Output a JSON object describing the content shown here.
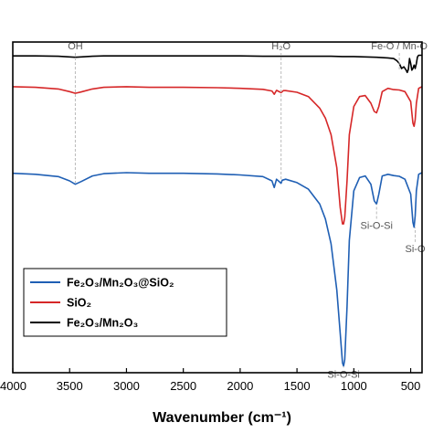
{
  "chart_data": {
    "type": "line",
    "xlabel": "Wavenumber (cm⁻¹)",
    "ylabel": "",
    "title": "",
    "xlim": [
      4000,
      400
    ],
    "ylim": [
      0,
      100
    ],
    "x_reversed": true,
    "x_ticks": [
      4000,
      3500,
      3000,
      2500,
      2000,
      1500,
      1000,
      500
    ],
    "x_tick_labels": [
      "4000",
      "3500",
      "3000",
      "2500",
      "2000",
      "1500",
      "1000",
      "500"
    ],
    "y_ticks_shown": false,
    "grid": false,
    "legend_position": "bottom-left",
    "series": [
      {
        "name": "Fe₂O₃/Mn₂O₃@SiO₂",
        "color": "#1f5fb4",
        "x": [
          4000,
          3800,
          3600,
          3500,
          3450,
          3400,
          3300,
          3200,
          3000,
          2800,
          2500,
          2200,
          2000,
          1800,
          1720,
          1700,
          1680,
          1640,
          1630,
          1600,
          1500,
          1400,
          1300,
          1250,
          1200,
          1150,
          1120,
          1100,
          1090,
          1080,
          1060,
          1040,
          1000,
          950,
          900,
          850,
          820,
          800,
          780,
          750,
          700,
          650,
          600,
          550,
          500,
          480,
          470,
          460,
          450,
          430,
          400
        ],
        "y": [
          60.3,
          60.0,
          59.3,
          58.0,
          57.0,
          57.8,
          59.5,
          60.2,
          60.5,
          60.3,
          60.3,
          60.1,
          59.8,
          59.3,
          58.0,
          56.0,
          58.5,
          57.3,
          58.2,
          58.5,
          57.5,
          55.5,
          51.0,
          46.5,
          39.0,
          25.0,
          12.0,
          3.0,
          2.0,
          4.0,
          20.0,
          40.0,
          55.0,
          59.0,
          59.5,
          57.0,
          52.0,
          51.0,
          54.0,
          59.5,
          60.0,
          59.6,
          59.4,
          58.5,
          54.0,
          45.5,
          44.0,
          47.5,
          55.0,
          60.0,
          60.5
        ]
      },
      {
        "name": "SiO₂",
        "color": "#d62728",
        "x": [
          4000,
          3800,
          3600,
          3500,
          3450,
          3400,
          3300,
          3200,
          3000,
          2800,
          2500,
          2200,
          2000,
          1800,
          1720,
          1700,
          1680,
          1640,
          1620,
          1600,
          1500,
          1400,
          1300,
          1250,
          1200,
          1150,
          1120,
          1100,
          1090,
          1080,
          1060,
          1040,
          1000,
          950,
          900,
          850,
          820,
          800,
          780,
          750,
          700,
          650,
          600,
          550,
          500,
          480,
          470,
          460,
          450,
          430,
          400
        ],
        "y": [
          86.5,
          86.3,
          85.8,
          85.0,
          84.5,
          84.9,
          85.8,
          86.3,
          86.5,
          86.3,
          86.3,
          86.2,
          86.0,
          85.7,
          85.2,
          84.2,
          85.4,
          84.7,
          85.3,
          85.3,
          84.8,
          83.5,
          80.0,
          77.0,
          72.0,
          62.0,
          50.0,
          45.0,
          45.0,
          47.0,
          58.0,
          72.0,
          80.5,
          83.5,
          83.8,
          81.5,
          79.0,
          78.6,
          80.5,
          85.0,
          86.0,
          85.6,
          85.5,
          85.0,
          82.0,
          75.5,
          74.5,
          76.5,
          81.5,
          86.0,
          86.5
        ]
      },
      {
        "name": "Fe₂O₃/Mn₂O₃",
        "color": "#000000",
        "x": [
          4000,
          3800,
          3600,
          3500,
          3450,
          3400,
          3300,
          3200,
          3000,
          2800,
          2500,
          2200,
          2000,
          1800,
          1600,
          1400,
          1200,
          1100,
          1000,
          900,
          800,
          700,
          650,
          620,
          600,
          580,
          560,
          540,
          530,
          520,
          510,
          500,
          490,
          480,
          470,
          460,
          450,
          440,
          430,
          420,
          400
        ],
        "y": [
          95.8,
          95.8,
          95.7,
          95.5,
          95.4,
          95.5,
          95.7,
          95.8,
          95.8,
          95.8,
          95.8,
          95.8,
          95.8,
          95.7,
          95.7,
          95.7,
          95.7,
          95.6,
          95.6,
          95.5,
          95.4,
          95.2,
          95.0,
          94.3,
          93.5,
          92.0,
          92.5,
          91.5,
          90.8,
          91.8,
          95.0,
          93.5,
          91.5,
          92.0,
          93.0,
          92.0,
          93.5,
          95.5,
          96.0,
          96.0,
          96.0
        ]
      }
    ],
    "annotations": [
      {
        "text": "OH",
        "x": 3450,
        "y": 97.8,
        "vline_to": 57.5
      },
      {
        "text": "H₂O",
        "x": 1640,
        "y": 97.8,
        "vline_to": 58.3
      },
      {
        "text": "Fe-O / Mn-O",
        "x": 600,
        "y": 97.8,
        "vline_to": 91.5
      },
      {
        "text": "Si-O-Si",
        "x": 800,
        "y": 43.5,
        "vline_to": 51.0
      },
      {
        "text": "Si-O",
        "x": 460,
        "y": 36.5,
        "vline_to": 44.0
      },
      {
        "text": "Si-O-Si",
        "x": 1090,
        "y": -1.5,
        "vline_to": 2.0
      }
    ]
  }
}
